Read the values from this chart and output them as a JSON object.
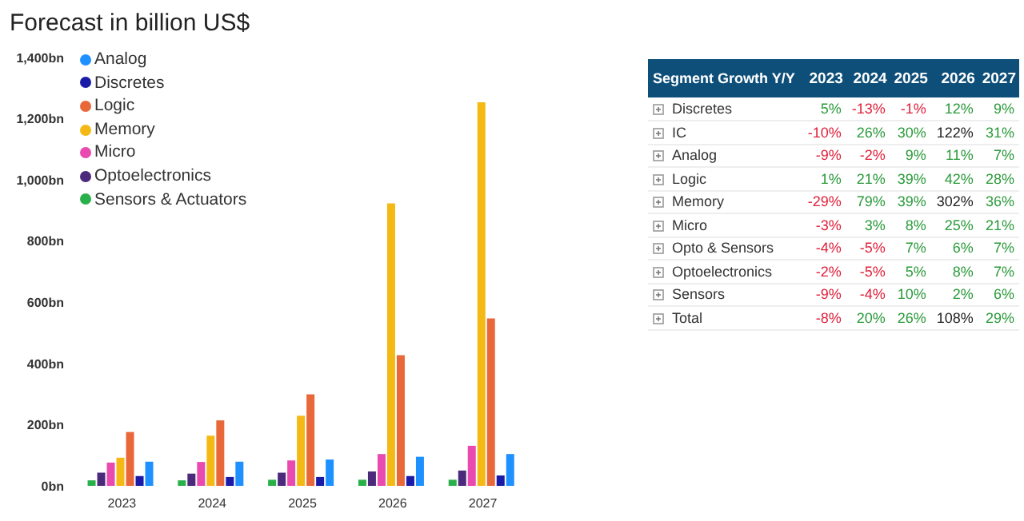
{
  "chart_data": [
    {
      "type": "bar",
      "title": "Forecast in billion US$",
      "categories": [
        "2023",
        "2024",
        "2025",
        "2026",
        "2027"
      ],
      "series": [
        {
          "name": "Sensors & Actuators",
          "color": "#2ab04a",
          "values": [
            18,
            18,
            20,
            20,
            20
          ]
        },
        {
          "name": "Optoelectronics",
          "color": "#4b2a7c",
          "values": [
            43,
            40,
            43,
            47,
            50
          ]
        },
        {
          "name": "Micro",
          "color": "#e84ab0",
          "values": [
            76,
            78,
            83,
            104,
            131
          ]
        },
        {
          "name": "Memory",
          "color": "#f5b915",
          "values": [
            92,
            164,
            229,
            923,
            1254
          ]
        },
        {
          "name": "Logic",
          "color": "#e8683a",
          "values": [
            176,
            214,
            299,
            427,
            547
          ]
        },
        {
          "name": "Discretes",
          "color": "#1a1aa8",
          "values": [
            32,
            29,
            29,
            32,
            34
          ]
        },
        {
          "name": "Analog",
          "color": "#1e90ff",
          "values": [
            79,
            79,
            86,
            95,
            104
          ]
        }
      ],
      "ylim": [
        0,
        1400
      ],
      "yticks": [
        {
          "value": 0,
          "label": "0bn"
        },
        {
          "value": 200,
          "label": "200bn"
        },
        {
          "value": 400,
          "label": "400bn"
        },
        {
          "value": 600,
          "label": "600bn"
        },
        {
          "value": 800,
          "label": "800bn"
        },
        {
          "value": 1000,
          "label": "1,000bn"
        },
        {
          "value": 1200,
          "label": "1,200bn"
        },
        {
          "value": 1400,
          "label": "1,400bn"
        }
      ],
      "grid": false,
      "legend": "top left"
    },
    {
      "type": "heatmap",
      "title": "Segment Growth Y/Y",
      "categories": [
        "2023",
        "2024",
        "2025",
        "2026",
        "2027"
      ],
      "y_categories": [
        "Discretes",
        "IC",
        "Analog",
        "Logic",
        "Memory",
        "Micro",
        "Opto & Sensors",
        "Optoelectronics",
        "Sensors",
        "Total"
      ],
      "cells": [
        [
          5,
          -13,
          -1,
          12,
          9
        ],
        [
          -10,
          26,
          30,
          122,
          31
        ],
        [
          -9,
          -2,
          9,
          11,
          7
        ],
        [
          1,
          21,
          39,
          42,
          28
        ],
        [
          -29,
          79,
          39,
          302,
          36
        ],
        [
          -3,
          3,
          8,
          25,
          21
        ],
        [
          -4,
          -5,
          7,
          6,
          7
        ],
        [
          -2,
          -5,
          5,
          8,
          7
        ],
        [
          -9,
          -4,
          10,
          2,
          6
        ],
        [
          -8,
          20,
          26,
          108,
          29
        ]
      ],
      "cell_labels": [
        [
          "5%",
          "-13%",
          "-1%",
          "12%",
          "9%"
        ],
        [
          "-10%",
          "26%",
          "30%",
          "122%",
          "31%"
        ],
        [
          "-9%",
          "-2%",
          "9%",
          "11%",
          "7%"
        ],
        [
          "1%",
          "21%",
          "39%",
          "42%",
          "28%"
        ],
        [
          "-29%",
          "79%",
          "39%",
          "302%",
          "36%"
        ],
        [
          "-3%",
          "3%",
          "8%",
          "25%",
          "21%"
        ],
        [
          "-4%",
          "-5%",
          "7%",
          "6%",
          "7%"
        ],
        [
          "-2%",
          "-5%",
          "5%",
          "8%",
          "7%"
        ],
        [
          "-9%",
          "-4%",
          "10%",
          "2%",
          "6%"
        ],
        [
          "-8%",
          "20%",
          "26%",
          "108%",
          "29%"
        ]
      ]
    }
  ]
}
